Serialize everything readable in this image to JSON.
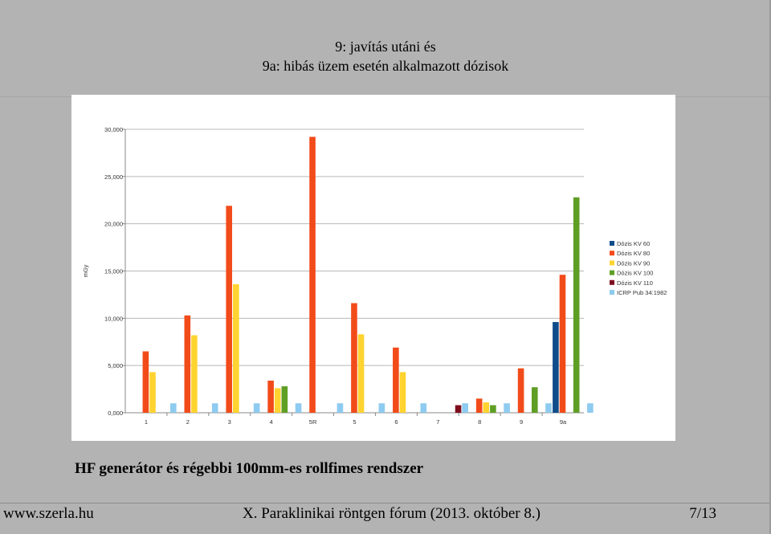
{
  "slide": {
    "title_line1": "9: javítás utáni és",
    "title_line2": "9a: hibás üzem esetén alkalmazott dózisok",
    "caption": "HF generátor és régebbi 100mm-es rollfimes rendszer",
    "footer_left": "www.szerla.hu",
    "footer_center": "X. Paraklinikai röntgen fórum (2013. október 8.)",
    "footer_right": "7/13"
  },
  "chart_data": {
    "type": "bar",
    "title": "",
    "xlabel": "",
    "ylabel": "mGy",
    "ylim": [
      0,
      30
    ],
    "yticks": [
      0,
      5,
      10,
      15,
      20,
      25,
      30
    ],
    "ytick_labels": [
      "0,000",
      "5,000",
      "10,000",
      "15,000",
      "20,000",
      "25,000",
      "30,000"
    ],
    "grid": true,
    "legend_position": "right",
    "categories": [
      "1",
      "2",
      "3",
      "4",
      "5R",
      "5",
      "6",
      "7",
      "8",
      "9",
      "9a"
    ],
    "series": [
      {
        "name": "Dózis KV 60",
        "color": "#0f4c8a",
        "values": [
          null,
          null,
          null,
          null,
          null,
          null,
          null,
          null,
          null,
          null,
          9.6
        ]
      },
      {
        "name": "Dózis KV 80",
        "color": "#f24b1a",
        "values": [
          6.5,
          10.3,
          21.9,
          3.4,
          29.2,
          11.6,
          6.9,
          null,
          1.5,
          4.7,
          14.6
        ]
      },
      {
        "name": "Dózis KV 90",
        "color": "#ffd330",
        "values": [
          4.3,
          8.2,
          13.6,
          2.6,
          null,
          8.3,
          4.3,
          null,
          1.1,
          null,
          null
        ]
      },
      {
        "name": "Dózis KV 100",
        "color": "#5f9e24",
        "values": [
          null,
          null,
          null,
          2.8,
          null,
          null,
          null,
          null,
          0.8,
          2.7,
          22.8
        ]
      },
      {
        "name": "Dózis KV 110",
        "color": "#7d0c1f",
        "values": [
          null,
          null,
          null,
          null,
          null,
          null,
          null,
          0.8,
          null,
          null,
          null
        ]
      },
      {
        "name": "ICRP Pub 34:1982",
        "color": "#8ecbf0",
        "values": [
          1.0,
          1.0,
          1.0,
          1.0,
          1.0,
          1.0,
          1.0,
          1.0,
          1.0,
          1.0,
          1.0
        ]
      }
    ]
  }
}
